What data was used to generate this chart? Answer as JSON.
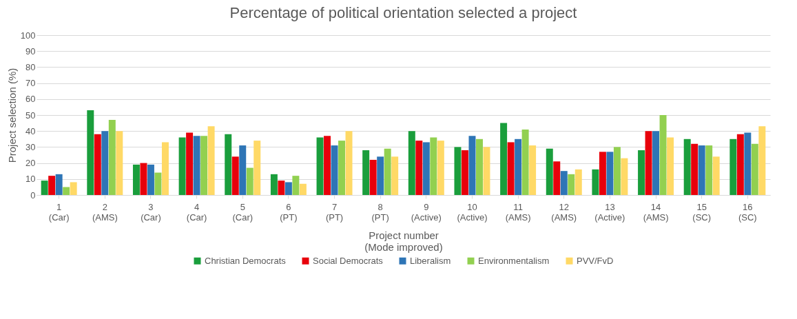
{
  "chart_data": {
    "type": "bar",
    "title": "Percentage of political orientation selected a project",
    "xlabel": "Project number\n(Mode improved)",
    "ylabel": "Project selection (%)",
    "categories": [
      "1\n(Car)",
      "2\n(AMS)",
      "3\n(Car)",
      "4\n(Car)",
      "5\n(Car)",
      "6\n(PT)",
      "7\n(PT)",
      "8\n(PT)",
      "9\n(Active)",
      "10\n(Active)",
      "11\n(AMS)",
      "12\n(AMS)",
      "13\n(Active)",
      "14\n(AMS)",
      "15\n(SC)",
      "16\n(SC)"
    ],
    "series": [
      {
        "name": "Christian Democrats",
        "color": "#1a9e3c",
        "values": [
          9,
          53,
          19,
          36,
          38,
          13,
          36,
          28,
          40,
          30,
          45,
          29,
          16,
          28,
          35,
          35
        ]
      },
      {
        "name": "Social Democrats",
        "color": "#e8000b",
        "values": [
          12,
          38,
          20,
          39,
          24,
          9,
          37,
          22,
          34,
          28,
          33,
          21,
          27,
          40,
          32,
          38
        ]
      },
      {
        "name": "Liberalism",
        "color": "#2e75b6",
        "values": [
          13,
          40,
          19,
          37,
          31,
          8,
          31,
          24,
          33,
          37,
          35,
          15,
          27,
          40,
          31,
          39
        ]
      },
      {
        "name": "Environmentalism",
        "color": "#92d050",
        "values": [
          5,
          47,
          14,
          37,
          17,
          12,
          34,
          29,
          36,
          35,
          41,
          13,
          30,
          50,
          31,
          32
        ]
      },
      {
        "name": "PVV/FvD",
        "color": "#ffd966",
        "values": [
          8,
          40,
          33,
          43,
          34,
          7,
          40,
          24,
          34,
          30,
          31,
          16,
          23,
          36,
          24,
          43
        ]
      }
    ],
    "ylim": [
      0,
      100
    ],
    "yticks": [
      0,
      10,
      20,
      30,
      40,
      50,
      60,
      70,
      80,
      90,
      100
    ],
    "grid": "y",
    "legend": "bottom"
  }
}
